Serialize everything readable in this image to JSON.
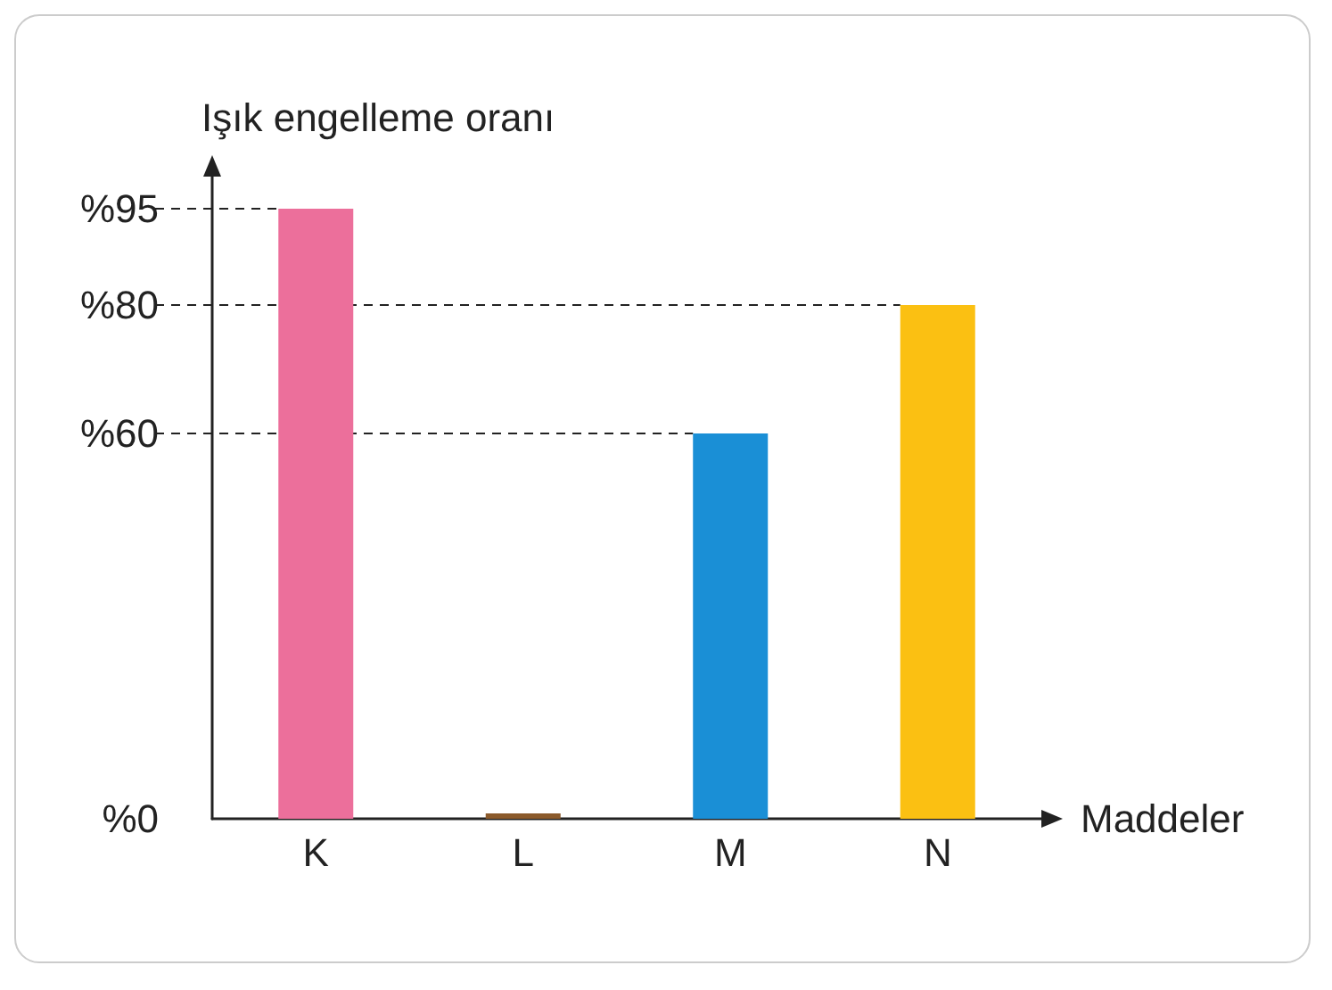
{
  "chart_data": {
    "type": "bar",
    "xlabel": "Maddeler",
    "ylabel": "Işık engelleme oranı",
    "categories": [
      "K",
      "L",
      "M",
      "N"
    ],
    "values": [
      95,
      0,
      60,
      80
    ],
    "colors": [
      "#ec6f9b",
      "#8b5a2b",
      "#1a8fd6",
      "#fbc012"
    ],
    "ylim": [
      0,
      100
    ],
    "yticks": [
      {
        "value": 0,
        "label": "%0"
      },
      {
        "value": 60,
        "label": "%60"
      },
      {
        "value": 80,
        "label": "%80"
      },
      {
        "value": 95,
        "label": "%95"
      }
    ],
    "ref_lines": [
      {
        "axis": "y",
        "value": 95,
        "line_style": "dashed"
      },
      {
        "axis": "y",
        "value": 80,
        "line_style": "dashed"
      },
      {
        "axis": "y",
        "value": 60,
        "line_style": "dashed"
      }
    ]
  }
}
